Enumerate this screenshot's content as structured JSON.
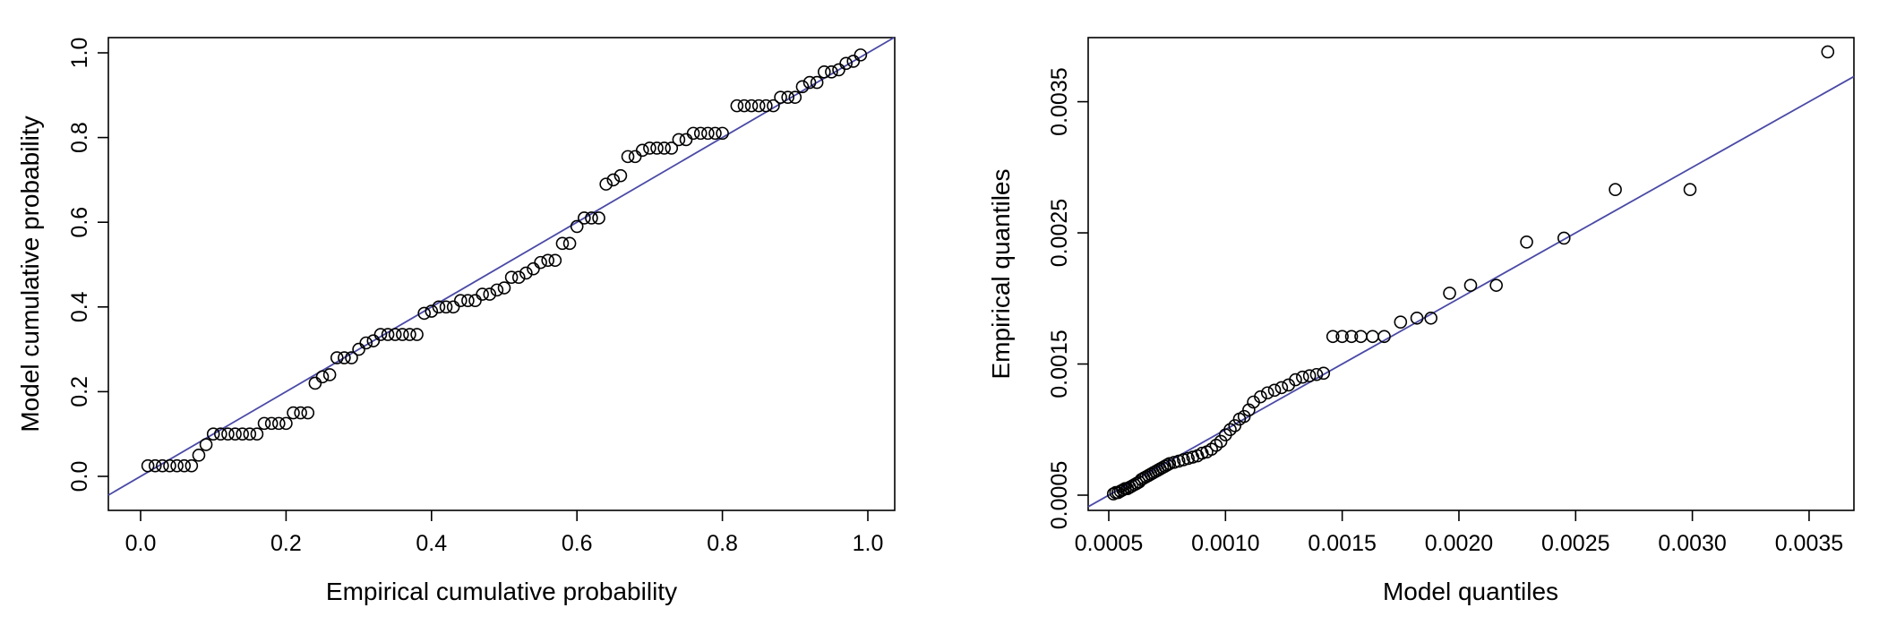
{
  "chart_data": [
    {
      "type": "scatter",
      "xlabel": "Empirical cumulative probability",
      "ylabel": "Model cumulative probability",
      "xlim": [
        0.0,
        1.0
      ],
      "ylim": [
        0.0,
        1.0
      ],
      "xticks": [
        "0.0",
        "0.2",
        "0.4",
        "0.6",
        "0.8",
        "1.0"
      ],
      "yticks": [
        "0.0",
        "0.2",
        "0.4",
        "0.6",
        "0.8",
        "1.0"
      ],
      "reference_line": {
        "color": "#4a4aa6",
        "from": [
          0,
          0
        ],
        "to": [
          1,
          1
        ]
      },
      "points": [
        [
          0.01,
          0.025
        ],
        [
          0.02,
          0.025
        ],
        [
          0.03,
          0.025
        ],
        [
          0.04,
          0.025
        ],
        [
          0.05,
          0.025
        ],
        [
          0.06,
          0.025
        ],
        [
          0.07,
          0.025
        ],
        [
          0.08,
          0.05
        ],
        [
          0.09,
          0.075
        ],
        [
          0.1,
          0.1
        ],
        [
          0.11,
          0.1
        ],
        [
          0.12,
          0.1
        ],
        [
          0.13,
          0.1
        ],
        [
          0.14,
          0.1
        ],
        [
          0.15,
          0.1
        ],
        [
          0.16,
          0.1
        ],
        [
          0.17,
          0.125
        ],
        [
          0.18,
          0.125
        ],
        [
          0.19,
          0.125
        ],
        [
          0.2,
          0.125
        ],
        [
          0.21,
          0.15
        ],
        [
          0.22,
          0.15
        ],
        [
          0.23,
          0.15
        ],
        [
          0.24,
          0.22
        ],
        [
          0.25,
          0.235
        ],
        [
          0.26,
          0.24
        ],
        [
          0.27,
          0.28
        ],
        [
          0.28,
          0.28
        ],
        [
          0.29,
          0.28
        ],
        [
          0.3,
          0.3
        ],
        [
          0.31,
          0.315
        ],
        [
          0.32,
          0.32
        ],
        [
          0.33,
          0.335
        ],
        [
          0.34,
          0.335
        ],
        [
          0.35,
          0.335
        ],
        [
          0.36,
          0.335
        ],
        [
          0.37,
          0.335
        ],
        [
          0.38,
          0.335
        ],
        [
          0.39,
          0.385
        ],
        [
          0.4,
          0.39
        ],
        [
          0.41,
          0.4
        ],
        [
          0.42,
          0.4
        ],
        [
          0.43,
          0.4
        ],
        [
          0.44,
          0.415
        ],
        [
          0.45,
          0.415
        ],
        [
          0.46,
          0.415
        ],
        [
          0.47,
          0.43
        ],
        [
          0.48,
          0.43
        ],
        [
          0.49,
          0.44
        ],
        [
          0.5,
          0.445
        ],
        [
          0.51,
          0.47
        ],
        [
          0.52,
          0.47
        ],
        [
          0.53,
          0.48
        ],
        [
          0.54,
          0.49
        ],
        [
          0.55,
          0.505
        ],
        [
          0.56,
          0.51
        ],
        [
          0.57,
          0.51
        ],
        [
          0.58,
          0.55
        ],
        [
          0.59,
          0.55
        ],
        [
          0.6,
          0.59
        ],
        [
          0.61,
          0.61
        ],
        [
          0.62,
          0.61
        ],
        [
          0.63,
          0.61
        ],
        [
          0.64,
          0.69
        ],
        [
          0.65,
          0.7
        ],
        [
          0.66,
          0.71
        ],
        [
          0.67,
          0.755
        ],
        [
          0.68,
          0.755
        ],
        [
          0.69,
          0.77
        ],
        [
          0.7,
          0.775
        ],
        [
          0.71,
          0.775
        ],
        [
          0.72,
          0.775
        ],
        [
          0.73,
          0.775
        ],
        [
          0.74,
          0.795
        ],
        [
          0.75,
          0.795
        ],
        [
          0.76,
          0.81
        ],
        [
          0.77,
          0.81
        ],
        [
          0.78,
          0.81
        ],
        [
          0.79,
          0.81
        ],
        [
          0.8,
          0.81
        ],
        [
          0.82,
          0.875
        ],
        [
          0.83,
          0.875
        ],
        [
          0.84,
          0.875
        ],
        [
          0.85,
          0.875
        ],
        [
          0.86,
          0.875
        ],
        [
          0.87,
          0.875
        ],
        [
          0.88,
          0.895
        ],
        [
          0.89,
          0.895
        ],
        [
          0.9,
          0.895
        ],
        [
          0.91,
          0.92
        ],
        [
          0.92,
          0.93
        ],
        [
          0.93,
          0.93
        ],
        [
          0.94,
          0.955
        ],
        [
          0.95,
          0.955
        ],
        [
          0.96,
          0.96
        ],
        [
          0.97,
          0.975
        ],
        [
          0.98,
          0.98
        ],
        [
          0.99,
          0.995
        ]
      ]
    },
    {
      "type": "scatter",
      "xlabel": "Model quantiles",
      "ylabel": "Empirical quantiles",
      "xlim": [
        0.0005,
        0.0036
      ],
      "ylim": [
        0.0005,
        0.0039
      ],
      "xticks": [
        "0.0005",
        "0.0010",
        "0.0015",
        "0.0020",
        "0.0025",
        "0.0030",
        "0.0035"
      ],
      "yticks": [
        "0.0005",
        "0.0015",
        "0.0025",
        "0.0035"
      ],
      "reference_line": {
        "color": "#4a4aa6",
        "from": [
          0.0005,
          0.0005
        ],
        "to": [
          0.0036,
          0.0036
        ]
      },
      "points": [
        [
          0.00052,
          0.00051
        ],
        [
          0.00053,
          0.00052
        ],
        [
          0.00054,
          0.00052
        ],
        [
          0.00055,
          0.00053
        ],
        [
          0.00056,
          0.00054
        ],
        [
          0.00057,
          0.00055
        ],
        [
          0.00058,
          0.00055
        ],
        [
          0.00059,
          0.00056
        ],
        [
          0.0006,
          0.00057
        ],
        [
          0.00061,
          0.00058
        ],
        [
          0.00062,
          0.00059
        ],
        [
          0.00063,
          0.0006
        ],
        [
          0.00064,
          0.00062
        ],
        [
          0.00065,
          0.00063
        ],
        [
          0.00066,
          0.00064
        ],
        [
          0.00067,
          0.00065
        ],
        [
          0.00068,
          0.00066
        ],
        [
          0.00069,
          0.00067
        ],
        [
          0.0007,
          0.00068
        ],
        [
          0.00071,
          0.00069
        ],
        [
          0.00072,
          0.0007
        ],
        [
          0.00073,
          0.00071
        ],
        [
          0.00074,
          0.00072
        ],
        [
          0.00075,
          0.00073
        ],
        [
          0.00076,
          0.00074
        ],
        [
          0.00078,
          0.00075
        ],
        [
          0.0008,
          0.00076
        ],
        [
          0.00082,
          0.00077
        ],
        [
          0.00084,
          0.00078
        ],
        [
          0.00086,
          0.00079
        ],
        [
          0.00088,
          0.0008
        ],
        [
          0.0009,
          0.00082
        ],
        [
          0.00092,
          0.00083
        ],
        [
          0.00094,
          0.00085
        ],
        [
          0.00096,
          0.00088
        ],
        [
          0.00098,
          0.00091
        ],
        [
          0.001,
          0.00096
        ],
        [
          0.00102,
          0.001
        ],
        [
          0.00104,
          0.00103
        ],
        [
          0.00106,
          0.00108
        ],
        [
          0.00108,
          0.0011
        ],
        [
          0.0011,
          0.00115
        ],
        [
          0.00112,
          0.00121
        ],
        [
          0.00115,
          0.00125
        ],
        [
          0.00118,
          0.00128
        ],
        [
          0.00121,
          0.0013
        ],
        [
          0.00124,
          0.00132
        ],
        [
          0.00127,
          0.00134
        ],
        [
          0.0013,
          0.00138
        ],
        [
          0.00133,
          0.0014
        ],
        [
          0.00136,
          0.00141
        ],
        [
          0.00139,
          0.00142
        ],
        [
          0.00142,
          0.00143
        ],
        [
          0.00146,
          0.00171
        ],
        [
          0.0015,
          0.00171
        ],
        [
          0.00154,
          0.00171
        ],
        [
          0.00158,
          0.00171
        ],
        [
          0.00163,
          0.00171
        ],
        [
          0.00168,
          0.00171
        ],
        [
          0.00175,
          0.00182
        ],
        [
          0.00182,
          0.00185
        ],
        [
          0.00188,
          0.00185
        ],
        [
          0.00196,
          0.00204
        ],
        [
          0.00205,
          0.0021
        ],
        [
          0.00216,
          0.0021
        ],
        [
          0.00229,
          0.00243
        ],
        [
          0.00245,
          0.00246
        ],
        [
          0.00267,
          0.00283
        ],
        [
          0.00299,
          0.00283
        ],
        [
          0.00358,
          0.00388
        ]
      ]
    }
  ]
}
